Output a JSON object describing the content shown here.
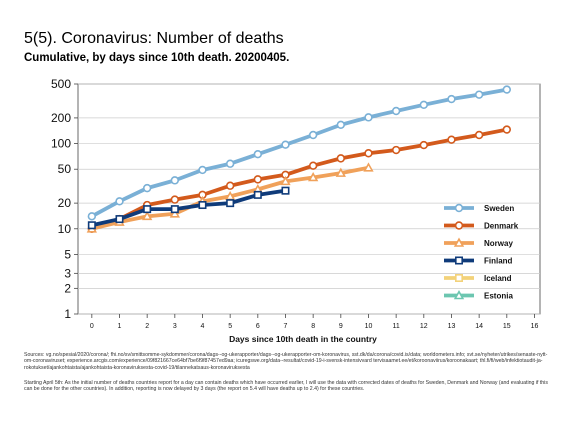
{
  "header": {
    "title": "5(5). Coronavirus: Number of deaths",
    "subtitle": "Cumulative, by days since 10th death. 20200405."
  },
  "footer": {
    "sources": "Sources: vg.no/spesial/2020/corona/; fhi.no/sv/smittsomme-sykdommer/corona/dags--og-ukerapporter/dags--og-ukerapporter-om-koronavirus, sst.dk/da/corona/covid.is/data; worldometers.info; svt.se/nyheter/utrikes/senaste-nytt-om-coronaviruset; experience.arcgis.com/experience/09f821667ce64bf7be6f9f87457ed9aa; icuregswe.org/data--resultat/covid-19-i-svensk-intensivvard tervisaamet.ee/et/koroonaviirus/koroonakaart; thl.fi/fi/web/infektiotaudit-ja-rokotukset/ajankohtaista/ajankohtaista-koronaviruksesta-covid-19/tilannekatsaus-koronaviruksesta",
    "note": "Starting April 5th: As the initial number of deaths countries report for a day can contain deaths which have occurred earlier, I will use the data with corrected dates of deaths for Sweden, Denmark and Norway (and evaluating if this can be done for the other countries). In addition, reporting is now delayed by 3 days (the report on 5.4 will have deaths up to 2.4) for these countries."
  },
  "chart_data": {
    "type": "line",
    "xlabel": "Days since 10th death in the country",
    "ylabel": "",
    "xlim": [
      -0.5,
      16.2
    ],
    "ylim": [
      1,
      500
    ],
    "yscale": "log",
    "xticks": [
      0,
      1,
      2,
      3,
      4,
      5,
      6,
      7,
      8,
      9,
      10,
      11,
      12,
      13,
      14,
      15,
      16
    ],
    "yticks": [
      1,
      2,
      3,
      5,
      10,
      20,
      50,
      100,
      200,
      500
    ],
    "grid": "horizontal",
    "legend_position": "right",
    "series": [
      {
        "name": "Sweden",
        "color": "#7ab0d6",
        "marker": "circle",
        "x": [
          0,
          1,
          2,
          3,
          4,
          5,
          6,
          7,
          8,
          9,
          10,
          11,
          12,
          13,
          14,
          15
        ],
        "y": [
          14,
          21,
          30,
          37,
          49,
          58,
          75,
          97,
          126,
          166,
          203,
          241,
          285,
          333,
          375,
          430
        ]
      },
      {
        "name": "Denmark",
        "color": "#d35a1c",
        "marker": "circle",
        "x": [
          0,
          1,
          2,
          3,
          4,
          5,
          6,
          7,
          8,
          9,
          10,
          11,
          12,
          13,
          14,
          15
        ],
        "y": [
          10,
          13,
          19,
          22,
          25,
          32,
          38,
          43,
          55,
          67,
          77,
          84,
          96,
          111,
          126,
          146
        ]
      },
      {
        "name": "Norway",
        "color": "#f0a15a",
        "marker": "triangle",
        "x": [
          0,
          1,
          2,
          3,
          4,
          5,
          6,
          7,
          8,
          9,
          10
        ],
        "y": [
          10,
          12,
          14,
          15,
          21,
          24,
          29,
          36,
          40,
          45,
          52
        ]
      },
      {
        "name": "Finland",
        "color": "#0f3b7a",
        "marker": "square",
        "x": [
          0,
          1,
          2,
          3,
          4,
          5,
          6,
          7
        ],
        "y": [
          11,
          13,
          17,
          17,
          19,
          20,
          25,
          28
        ]
      },
      {
        "name": "Iceland",
        "color": "#f3d27a",
        "marker": "square",
        "x": [],
        "y": []
      },
      {
        "name": "Estonia",
        "color": "#6cc6b0",
        "marker": "triangle",
        "x": [],
        "y": []
      }
    ]
  }
}
